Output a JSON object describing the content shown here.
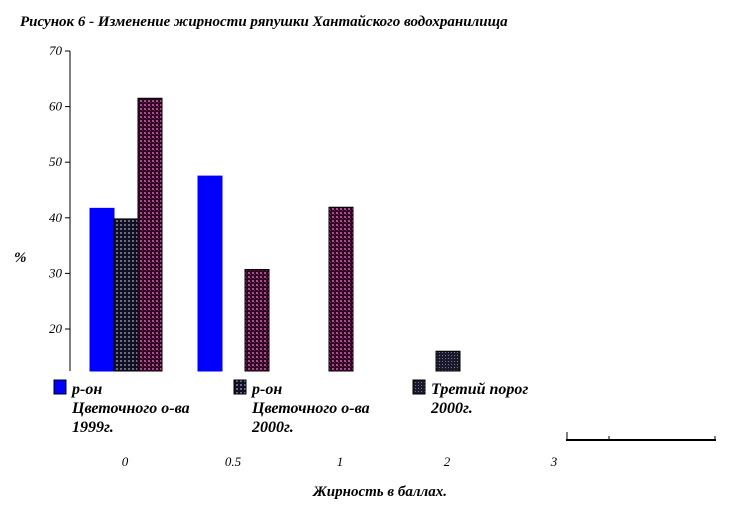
{
  "chart_data": {
    "type": "bar",
    "title": "Рисунок 6 - Изменение жирности ряпушки Хантайского водохранилища",
    "xlabel": "Жирность в баллах.",
    "ylabel": "%",
    "categories": [
      "0",
      "0.5",
      "1",
      "2",
      "3"
    ],
    "yticks": [
      "20",
      "30",
      "40",
      "50",
      "60",
      "70"
    ],
    "ylim": [
      12,
      70
    ],
    "grid": false,
    "legend_position": "bottom",
    "series": [
      {
        "name_lines": [
          "р-он",
          "Цветочного о-ва",
          "1999г."
        ],
        "color": "#0000ff",
        "values": [
          41.7,
          47.5,
          null,
          null,
          null
        ]
      },
      {
        "name_lines": [
          "р-он",
          "Цветочного о-ва",
          "2000г."
        ],
        "color": "#1c1c3a",
        "values": [
          39.8,
          null,
          null,
          16,
          null
        ]
      },
      {
        "name_lines": [
          "Третий порог",
          "2000г."
        ],
        "color": "#3a0e2e",
        "values": [
          61.5,
          30.7,
          41.9,
          null,
          null
        ]
      }
    ]
  }
}
